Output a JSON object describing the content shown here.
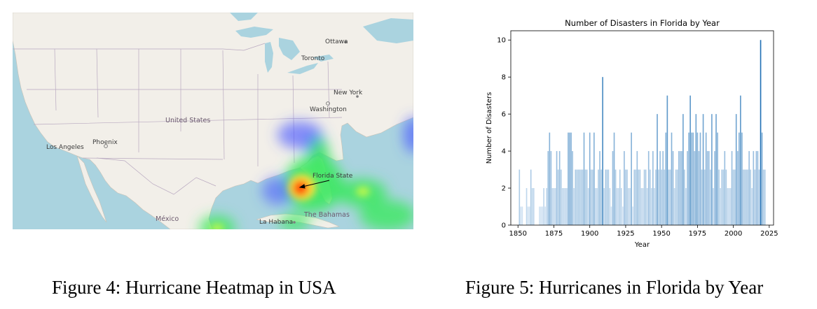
{
  "figure4": {
    "caption": "Figure 4: Hurricane Heatmap in USA",
    "map": {
      "colors": {
        "land": "#f2efe9",
        "water": "#aad3df",
        "border": "#b9a9c0",
        "heat_low": "#4b5bff",
        "heat_mid": "#3ce860",
        "heat_high": "#ff5a00"
      },
      "labels": {
        "ottawa": "Ottawa",
        "toronto": "Toronto",
        "new_york": "New York",
        "washington": "Washington",
        "united_states": "United States",
        "phoenix": "Phoenix",
        "los_angeles": "Los Angeles",
        "mexico": "México",
        "la_habana": "La Habana",
        "bahamas": "The Bahamas",
        "florida_state": "Florida State"
      }
    }
  },
  "figure5": {
    "caption": "Figure 5: Hurricanes in Florida by Year",
    "chart_data": {
      "type": "bar",
      "title": "Number of Disasters in Florida by Year",
      "xlabel": "Year",
      "ylabel": "Number of Disasters",
      "xlim": [
        1845,
        2028
      ],
      "ylim": [
        0,
        10.5
      ],
      "xticks": [
        1850,
        1875,
        1900,
        1925,
        1950,
        1975,
        2000,
        2025
      ],
      "yticks": [
        0,
        2,
        4,
        6,
        8,
        10
      ],
      "grid": false,
      "colormap": {
        "low": "#deebf7",
        "high": "#2171b5"
      },
      "x": [
        1851,
        1852,
        1853,
        1856,
        1857,
        1858,
        1859,
        1860,
        1861,
        1865,
        1866,
        1867,
        1868,
        1869,
        1870,
        1871,
        1872,
        1873,
        1874,
        1875,
        1876,
        1877,
        1878,
        1879,
        1880,
        1881,
        1882,
        1883,
        1884,
        1885,
        1886,
        1887,
        1888,
        1889,
        1890,
        1891,
        1892,
        1893,
        1894,
        1895,
        1896,
        1897,
        1898,
        1899,
        1900,
        1901,
        1902,
        1903,
        1904,
        1905,
        1906,
        1907,
        1908,
        1909,
        1910,
        1911,
        1912,
        1913,
        1914,
        1915,
        1916,
        1917,
        1918,
        1919,
        1920,
        1921,
        1922,
        1923,
        1924,
        1925,
        1926,
        1927,
        1928,
        1929,
        1930,
        1931,
        1932,
        1933,
        1934,
        1935,
        1936,
        1937,
        1938,
        1939,
        1940,
        1941,
        1942,
        1943,
        1944,
        1945,
        1946,
        1947,
        1948,
        1949,
        1950,
        1951,
        1952,
        1953,
        1954,
        1955,
        1956,
        1957,
        1958,
        1959,
        1960,
        1961,
        1962,
        1963,
        1964,
        1965,
        1966,
        1967,
        1968,
        1969,
        1970,
        1971,
        1972,
        1973,
        1974,
        1975,
        1976,
        1977,
        1978,
        1979,
        1980,
        1981,
        1982,
        1983,
        1984,
        1985,
        1986,
        1987,
        1988,
        1989,
        1990,
        1991,
        1992,
        1993,
        1994,
        1995,
        1996,
        1997,
        1998,
        1999,
        2000,
        2001,
        2002,
        2003,
        2004,
        2005,
        2006,
        2007,
        2008,
        2009,
        2010,
        2011,
        2012,
        2013,
        2014,
        2015,
        2016,
        2017,
        2018,
        2019,
        2020,
        2021,
        2022
      ],
      "values": [
        3,
        1,
        1,
        2,
        1,
        1,
        3,
        2,
        2,
        1,
        1,
        1,
        2,
        1,
        2,
        4,
        5,
        4,
        2,
        2,
        2,
        4,
        3,
        4,
        3,
        2,
        2,
        2,
        2,
        5,
        5,
        5,
        4,
        2,
        3,
        3,
        3,
        3,
        3,
        3,
        5,
        3,
        3,
        2,
        5,
        3,
        3,
        5,
        2,
        2,
        3,
        4,
        3,
        8,
        2,
        3,
        3,
        3,
        2,
        1,
        4,
        5,
        3,
        2,
        2,
        3,
        2,
        1,
        4,
        3,
        3,
        2,
        2,
        5,
        1,
        3,
        3,
        4,
        3,
        3,
        2,
        2,
        3,
        3,
        2,
        4,
        3,
        2,
        4,
        2,
        3,
        6,
        3,
        4,
        3,
        4,
        3,
        5,
        7,
        3,
        3,
        5,
        4,
        2,
        3,
        3,
        4,
        4,
        4,
        6,
        3,
        2,
        4,
        5,
        7,
        5,
        5,
        4,
        6,
        5,
        4,
        5,
        3,
        6,
        3,
        5,
        4,
        4,
        3,
        6,
        2,
        4,
        6,
        5,
        3,
        2,
        3,
        3,
        4,
        3,
        2,
        2,
        2,
        4,
        3,
        3,
        6,
        4,
        5,
        7,
        5,
        3,
        3,
        3,
        3,
        4,
        3,
        2,
        4,
        3,
        4,
        4,
        3,
        10,
        5,
        3,
        3
      ]
    }
  }
}
